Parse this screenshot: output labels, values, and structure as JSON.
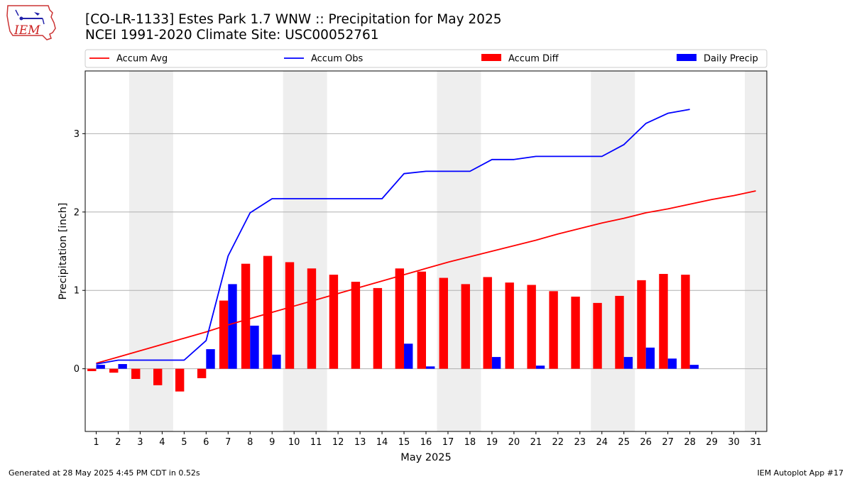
{
  "header": {
    "title_line1": "[CO-LR-1133] Estes Park 1.7 WNW :: Precipitation for May 2025",
    "title_line2": "NCEI 1991-2020 Climate Site: USC00052761"
  },
  "logo": {
    "text": "IEM"
  },
  "footer": {
    "left": "Generated at 28 May 2025 4:45 PM CDT in 0.52s",
    "right": "IEM Autoplot App #17"
  },
  "colors": {
    "avg": "#ff0000",
    "obs": "#0000ff",
    "diff": "#ff0000",
    "daily": "#0000ff",
    "weekend": "#eeeeee",
    "grid": "#b0b0b0"
  },
  "chart_data": {
    "type": "bar",
    "title": "[CO-LR-1133] Estes Park 1.7 WNW :: Precipitation for May 2025",
    "subtitle": "NCEI 1991-2020 Climate Site: USC00052761",
    "xlabel": "May 2025",
    "ylabel": "Precipitation [inch]",
    "xlim": [
      0.5,
      31.5
    ],
    "ylim": [
      -0.8,
      3.8
    ],
    "yticks": [
      0,
      1,
      2,
      3
    ],
    "grid": "y",
    "legend_position": "top",
    "days": [
      1,
      2,
      3,
      4,
      5,
      6,
      7,
      8,
      9,
      10,
      11,
      12,
      13,
      14,
      15,
      16,
      17,
      18,
      19,
      20,
      21,
      22,
      23,
      24,
      25,
      26,
      27,
      28,
      29,
      30,
      31
    ],
    "weekend_spans": [
      [
        3,
        4
      ],
      [
        10,
        11
      ],
      [
        17,
        18
      ],
      [
        24,
        25
      ],
      [
        31,
        31
      ]
    ],
    "series": [
      {
        "name": "Accum Avg",
        "kind": "line",
        "color": "#ff0000",
        "values": [
          0.07,
          0.15,
          0.23,
          0.31,
          0.39,
          0.47,
          0.56,
          0.64,
          0.72,
          0.8,
          0.88,
          0.96,
          1.04,
          1.12,
          1.2,
          1.28,
          1.36,
          1.43,
          1.5,
          1.57,
          1.64,
          1.72,
          1.79,
          1.86,
          1.92,
          1.99,
          2.04,
          2.1,
          2.16,
          2.21,
          2.27
        ]
      },
      {
        "name": "Accum Obs",
        "kind": "line",
        "color": "#0000ff",
        "values": [
          0.06,
          0.11,
          0.11,
          0.11,
          0.11,
          0.36,
          1.44,
          1.99,
          2.17,
          2.17,
          2.17,
          2.17,
          2.17,
          2.17,
          2.49,
          2.52,
          2.52,
          2.52,
          2.67,
          2.67,
          2.71,
          2.71,
          2.71,
          2.71,
          2.86,
          3.13,
          3.26,
          3.31,
          null,
          null,
          null
        ]
      },
      {
        "name": "Accum Diff",
        "kind": "bar",
        "color": "#ff0000",
        "values": [
          -0.03,
          -0.05,
          -0.13,
          -0.21,
          -0.29,
          -0.12,
          0.87,
          1.34,
          1.44,
          1.36,
          1.28,
          1.2,
          1.11,
          1.03,
          1.28,
          1.24,
          1.16,
          1.08,
          1.17,
          1.1,
          1.07,
          0.99,
          0.92,
          0.84,
          0.93,
          1.13,
          1.21,
          1.2,
          null,
          null,
          null
        ]
      },
      {
        "name": "Daily Precip",
        "kind": "bar",
        "color": "#0000ff",
        "values": [
          0.05,
          0.06,
          0,
          0,
          0,
          0.25,
          1.08,
          0.55,
          0.18,
          0,
          0,
          0,
          0,
          0,
          0.32,
          0.03,
          0,
          0,
          0.15,
          0,
          0.04,
          0,
          0,
          0,
          0.15,
          0.27,
          0.13,
          0.05,
          null,
          null,
          null
        ]
      }
    ]
  }
}
